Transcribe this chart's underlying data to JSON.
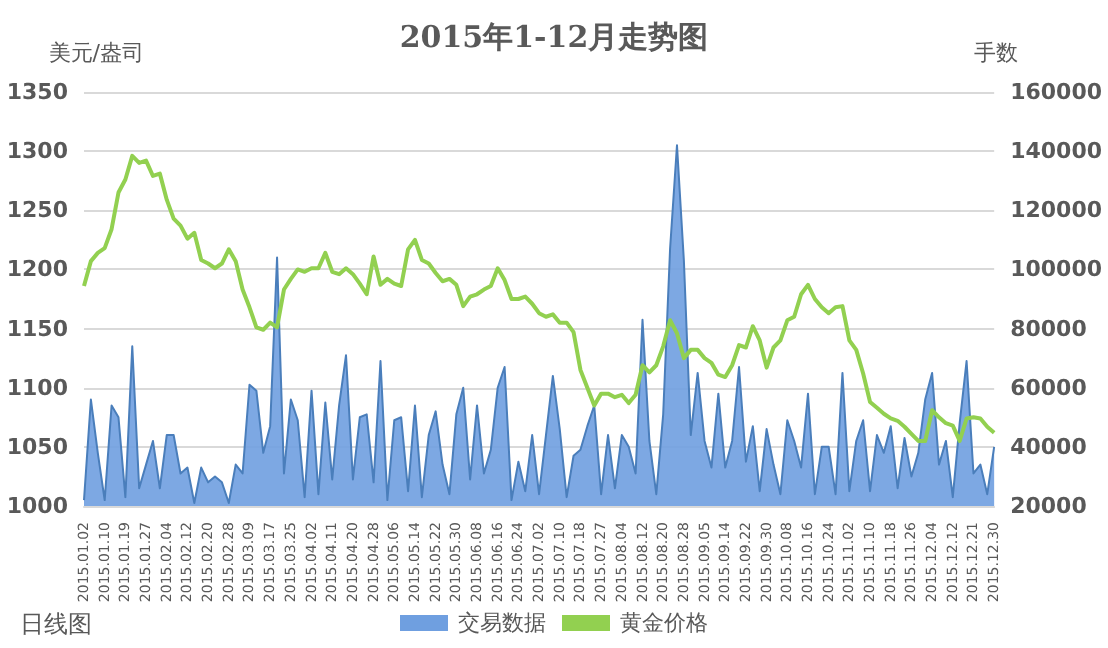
{
  "chart_data": {
    "type": "line",
    "title": "2015年1-12月走势图",
    "ylabel": "美元/盎司",
    "y2label": "手数",
    "annotations": [
      "日线图"
    ],
    "categories": [
      "2015.01.02",
      null,
      null,
      "2015.01.10",
      null,
      null,
      "2015.01.19",
      null,
      null,
      "2015.01.27",
      null,
      null,
      "2015.02.04",
      null,
      null,
      "2015.02.12",
      null,
      null,
      "2015.02.20",
      null,
      null,
      "2015.02.28",
      null,
      null,
      "2015.03.09",
      null,
      null,
      "2015.03.17",
      null,
      null,
      "2015.03.25",
      null,
      null,
      "2015.04.02",
      null,
      null,
      "2015.04.11",
      null,
      null,
      "2015.04.20",
      null,
      null,
      "2015.04.28",
      null,
      null,
      "2015.05.06",
      null,
      null,
      "2015.05.14",
      null,
      null,
      "2015.05.22",
      null,
      null,
      "2015.05.30",
      null,
      null,
      "2015.06.08",
      null,
      null,
      "2015.06.16",
      null,
      null,
      "2015.06.24",
      null,
      null,
      "2015.07.02",
      null,
      null,
      "2015.07.10",
      null,
      null,
      "2015.07.18",
      null,
      null,
      "2015.07.27",
      null,
      null,
      "2015.08.04",
      null,
      null,
      "2015.08.12",
      null,
      null,
      "2015.08.20",
      null,
      null,
      "2015.08.28",
      null,
      null,
      "2015.09.05",
      null,
      null,
      "2015.09.14",
      null,
      null,
      "2015.09.22",
      null,
      null,
      "2015.09.30",
      null,
      null,
      "2015.10.08",
      null,
      null,
      "2015.10.16",
      null,
      null,
      "2015.10.24",
      null,
      null,
      "2015.11.02",
      null,
      null,
      "2015.11.10",
      null,
      null,
      "2015.11.18",
      null,
      null,
      "2015.11.26",
      null,
      null,
      "2015.12.04",
      null,
      null,
      "2015.12.12",
      null,
      null,
      "2015.12.21",
      null,
      null,
      "2015.12.30"
    ],
    "series": [
      {
        "name": "交易数据",
        "type": "area",
        "axis": "y2",
        "color": "#6f9fe0",
        "values": [
          22000,
          56000,
          38000,
          22000,
          54000,
          50000,
          23000,
          74000,
          26000,
          34000,
          42000,
          26000,
          44000,
          44000,
          31000,
          33000,
          21000,
          33000,
          28000,
          30000,
          28000,
          21000,
          34000,
          31000,
          61000,
          59000,
          38000,
          47000,
          104000,
          31000,
          56000,
          49000,
          23000,
          59000,
          24000,
          55000,
          29000,
          54000,
          71000,
          29000,
          50000,
          51000,
          28000,
          69000,
          22000,
          49000,
          50000,
          25000,
          54000,
          23000,
          44000,
          52000,
          34000,
          24000,
          51000,
          60000,
          29000,
          54000,
          31000,
          39000,
          60000,
          67000,
          22000,
          35000,
          25000,
          44000,
          24000,
          44000,
          64000,
          46000,
          23000,
          37000,
          39000,
          47000,
          54000,
          24000,
          44000,
          26000,
          44000,
          40000,
          31000,
          83000,
          42000,
          24000,
          51000,
          107000,
          142000,
          103000,
          44000,
          65000,
          42000,
          33000,
          58000,
          33000,
          42000,
          67000,
          35000,
          47000,
          25000,
          46000,
          34000,
          24000,
          49000,
          42000,
          33000,
          58000,
          24000,
          40000,
          40000,
          24000,
          65000,
          25000,
          42000,
          49000,
          25000,
          44000,
          38000,
          47000,
          26000,
          43000,
          30000,
          38000,
          56000,
          65000,
          34000,
          42000,
          23000,
          48000,
          69000,
          31000,
          34000,
          24000,
          40000
        ]
      },
      {
        "name": "黄金价格",
        "color": "#92d050",
        "values": [
          1186,
          1207,
          1214,
          1218,
          1234,
          1265,
          1276,
          1296,
          1290,
          1292,
          1279,
          1281,
          1259,
          1243,
          1237,
          1226,
          1231,
          1208,
          1205,
          1201,
          1205,
          1217,
          1207,
          1183,
          1168,
          1151,
          1149,
          1155,
          1151,
          1183,
          1192,
          1200,
          1198,
          1201,
          1201,
          1214,
          1198,
          1196,
          1201,
          1196,
          1188,
          1179,
          1211,
          1187,
          1192,
          1188,
          1186,
          1217,
          1225,
          1208,
          1205,
          1197,
          1190,
          1192,
          1187,
          1169,
          1177,
          1179,
          1183,
          1186,
          1201,
          1191,
          1175,
          1175,
          1177,
          1171,
          1163,
          1160,
          1162,
          1155,
          1155,
          1147,
          1115,
          1100,
          1085,
          1095,
          1095,
          1092,
          1094,
          1087,
          1094,
          1119,
          1113,
          1119,
          1135,
          1157,
          1146,
          1125,
          1132,
          1132,
          1125,
          1121,
          1111,
          1109,
          1119,
          1136,
          1134,
          1152,
          1140,
          1117,
          1134,
          1140,
          1157,
          1160,
          1179,
          1187,
          1175,
          1168,
          1163,
          1168,
          1169,
          1140,
          1132,
          1112,
          1088,
          1083,
          1078,
          1074,
          1072,
          1067,
          1061,
          1055,
          1055,
          1081,
          1075,
          1070,
          1068,
          1055,
          1074,
          1075,
          1074,
          1067,
          1062
        ]
      }
    ],
    "ylim": [
      1000,
      1350
    ],
    "yticks": [
      1000,
      1050,
      1100,
      1150,
      1200,
      1250,
      1300,
      1350
    ],
    "y2lim": [
      20000,
      160000
    ],
    "y2ticks": [
      20000,
      40000,
      60000,
      80000,
      100000,
      120000,
      140000,
      160000
    ],
    "grid": "y",
    "legend": "bottom",
    "marker": "none"
  }
}
